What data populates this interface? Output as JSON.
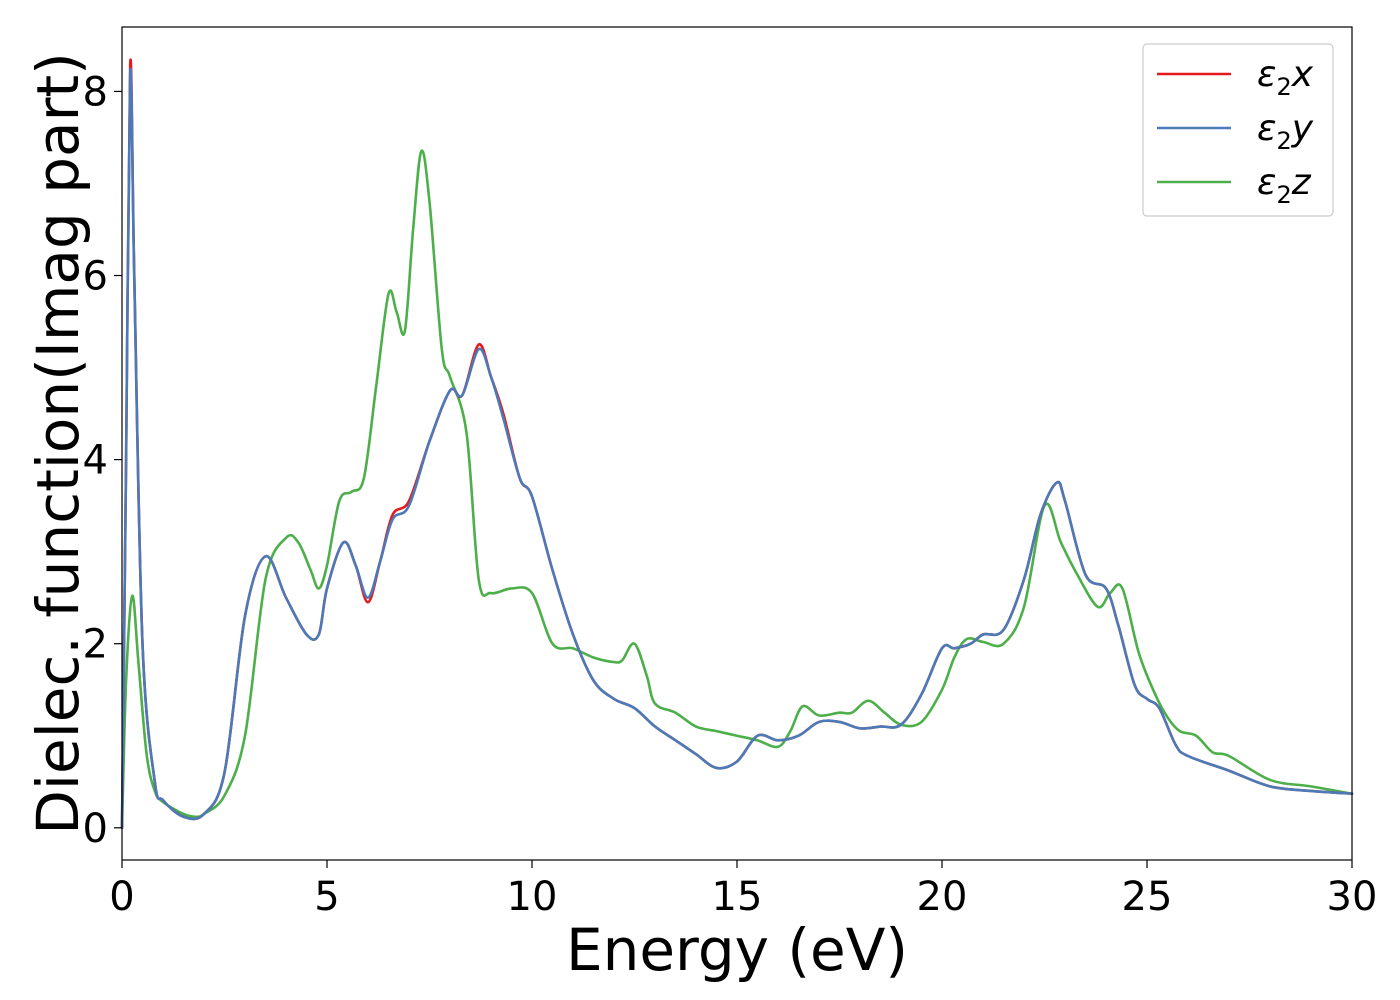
{
  "chart_data": {
    "type": "line",
    "title": "",
    "xlabel": "Energy (eV)",
    "ylabel": "Dielec. function(Imag part)",
    "xlim": [
      0,
      30
    ],
    "ylim": [
      -0.35,
      8.7
    ],
    "xticks": [
      0,
      5,
      10,
      15,
      20,
      25,
      30
    ],
    "yticks": [
      0,
      2,
      4,
      6,
      8
    ],
    "grid": false,
    "legend_position": "top-right",
    "series": [
      {
        "name": "ε2x",
        "symbol": "ε",
        "subscript": "2",
        "axis": "x",
        "color": "#e41a1c",
        "x": [
          0,
          0.1,
          0.2,
          0.3,
          0.5,
          0.8,
          1.0,
          1.5,
          2.0,
          2.5,
          3.0,
          3.5,
          4.0,
          4.5,
          4.8,
          5.0,
          5.4,
          5.7,
          6.0,
          6.3,
          6.6,
          7.0,
          7.5,
          8.0,
          8.3,
          8.7,
          9.0,
          9.3,
          9.7,
          10.0,
          10.5,
          11.0,
          11.5,
          12.0,
          12.5,
          13.0,
          13.5,
          14.0,
          14.5,
          15.0,
          15.5,
          16.0,
          16.5,
          17.0,
          17.5,
          18.0,
          18.5,
          19.0,
          19.5,
          20.0,
          20.3,
          20.7,
          21.0,
          21.5,
          22.0,
          22.4,
          22.8,
          23.0,
          23.5,
          24.0,
          24.3,
          24.7,
          25.0,
          25.3,
          25.7,
          26.0,
          27.0,
          28.0,
          29.0,
          30.0
        ],
        "values": [
          0,
          4.0,
          8.3,
          6.0,
          2.0,
          0.5,
          0.3,
          0.12,
          0.15,
          0.6,
          2.3,
          2.95,
          2.5,
          2.1,
          2.1,
          2.6,
          3.1,
          2.85,
          2.45,
          2.9,
          3.4,
          3.55,
          4.2,
          4.75,
          4.7,
          5.25,
          4.9,
          4.5,
          3.8,
          3.6,
          2.8,
          2.1,
          1.6,
          1.4,
          1.3,
          1.1,
          0.95,
          0.8,
          0.65,
          0.72,
          1.0,
          0.95,
          1.0,
          1.15,
          1.15,
          1.08,
          1.1,
          1.12,
          1.45,
          1.95,
          1.95,
          2.0,
          2.1,
          2.15,
          2.7,
          3.4,
          3.75,
          3.55,
          2.75,
          2.6,
          2.2,
          1.55,
          1.4,
          1.3,
          0.9,
          0.78,
          0.62,
          0.45,
          0.4,
          0.37
        ]
      },
      {
        "name": "ε2y",
        "symbol": "ε",
        "subscript": "2",
        "axis": "y",
        "color": "#4a7ab8",
        "x": [
          0,
          0.1,
          0.2,
          0.3,
          0.5,
          0.8,
          1.0,
          1.5,
          2.0,
          2.5,
          3.0,
          3.5,
          4.0,
          4.5,
          4.8,
          5.0,
          5.4,
          5.7,
          6.0,
          6.3,
          6.6,
          7.0,
          7.5,
          8.0,
          8.3,
          8.7,
          9.0,
          9.3,
          9.7,
          10.0,
          10.5,
          11.0,
          11.5,
          12.0,
          12.5,
          13.0,
          13.5,
          14.0,
          14.5,
          15.0,
          15.5,
          16.0,
          16.5,
          17.0,
          17.5,
          18.0,
          18.5,
          19.0,
          19.5,
          20.0,
          20.3,
          20.7,
          21.0,
          21.5,
          22.0,
          22.4,
          22.8,
          23.0,
          23.5,
          24.0,
          24.3,
          24.7,
          25.0,
          25.3,
          25.7,
          26.0,
          27.0,
          28.0,
          29.0,
          30.0
        ],
        "values": [
          0,
          4.0,
          8.2,
          5.95,
          2.0,
          0.5,
          0.3,
          0.12,
          0.15,
          0.6,
          2.3,
          2.95,
          2.5,
          2.1,
          2.1,
          2.6,
          3.1,
          2.85,
          2.5,
          2.9,
          3.35,
          3.5,
          4.2,
          4.75,
          4.7,
          5.2,
          4.9,
          4.45,
          3.8,
          3.6,
          2.8,
          2.1,
          1.6,
          1.4,
          1.3,
          1.1,
          0.95,
          0.8,
          0.65,
          0.72,
          1.0,
          0.95,
          1.0,
          1.15,
          1.15,
          1.08,
          1.1,
          1.12,
          1.45,
          1.95,
          1.95,
          2.0,
          2.1,
          2.15,
          2.7,
          3.4,
          3.75,
          3.55,
          2.75,
          2.6,
          2.2,
          1.55,
          1.4,
          1.3,
          0.9,
          0.78,
          0.62,
          0.45,
          0.4,
          0.37
        ]
      },
      {
        "name": "ε2z",
        "symbol": "ε",
        "subscript": "2",
        "axis": "z",
        "color": "#4daf4a",
        "x": [
          0,
          0.1,
          0.25,
          0.4,
          0.6,
          0.8,
          1.0,
          1.5,
          1.8,
          2.0,
          2.5,
          3.0,
          3.5,
          4.0,
          4.3,
          4.6,
          4.8,
          5.0,
          5.3,
          5.6,
          5.9,
          6.2,
          6.5,
          6.7,
          6.9,
          7.1,
          7.3,
          7.5,
          7.8,
          8.0,
          8.4,
          8.7,
          9.0,
          9.5,
          10.0,
          10.5,
          11.0,
          11.5,
          12.0,
          12.2,
          12.5,
          12.8,
          13.0,
          13.5,
          14.0,
          14.5,
          15.0,
          15.5,
          16.0,
          16.3,
          16.6,
          17.0,
          17.5,
          17.8,
          18.2,
          18.6,
          19.0,
          19.5,
          20.0,
          20.3,
          20.6,
          21.0,
          21.5,
          22.0,
          22.5,
          22.9,
          23.3,
          23.8,
          24.1,
          24.4,
          24.8,
          25.2,
          25.5,
          25.8,
          26.2,
          26.6,
          27.0,
          28.0,
          29.0,
          30.0
        ],
        "values": [
          0,
          1.6,
          2.52,
          1.8,
          0.8,
          0.4,
          0.28,
          0.15,
          0.12,
          0.15,
          0.35,
          1.0,
          2.7,
          3.15,
          3.1,
          2.8,
          2.6,
          2.85,
          3.55,
          3.65,
          3.8,
          4.8,
          5.8,
          5.6,
          5.4,
          6.5,
          7.35,
          6.8,
          5.2,
          4.9,
          4.3,
          2.7,
          2.55,
          2.6,
          2.55,
          2.0,
          1.95,
          1.85,
          1.8,
          1.82,
          2.0,
          1.65,
          1.35,
          1.25,
          1.1,
          1.05,
          1.0,
          0.95,
          0.88,
          1.05,
          1.32,
          1.22,
          1.25,
          1.25,
          1.38,
          1.25,
          1.12,
          1.15,
          1.5,
          1.85,
          2.05,
          2.02,
          2.0,
          2.4,
          3.5,
          3.1,
          2.75,
          2.4,
          2.55,
          2.6,
          1.9,
          1.45,
          1.2,
          1.05,
          1.0,
          0.82,
          0.78,
          0.52,
          0.45,
          0.37
        ]
      }
    ]
  }
}
